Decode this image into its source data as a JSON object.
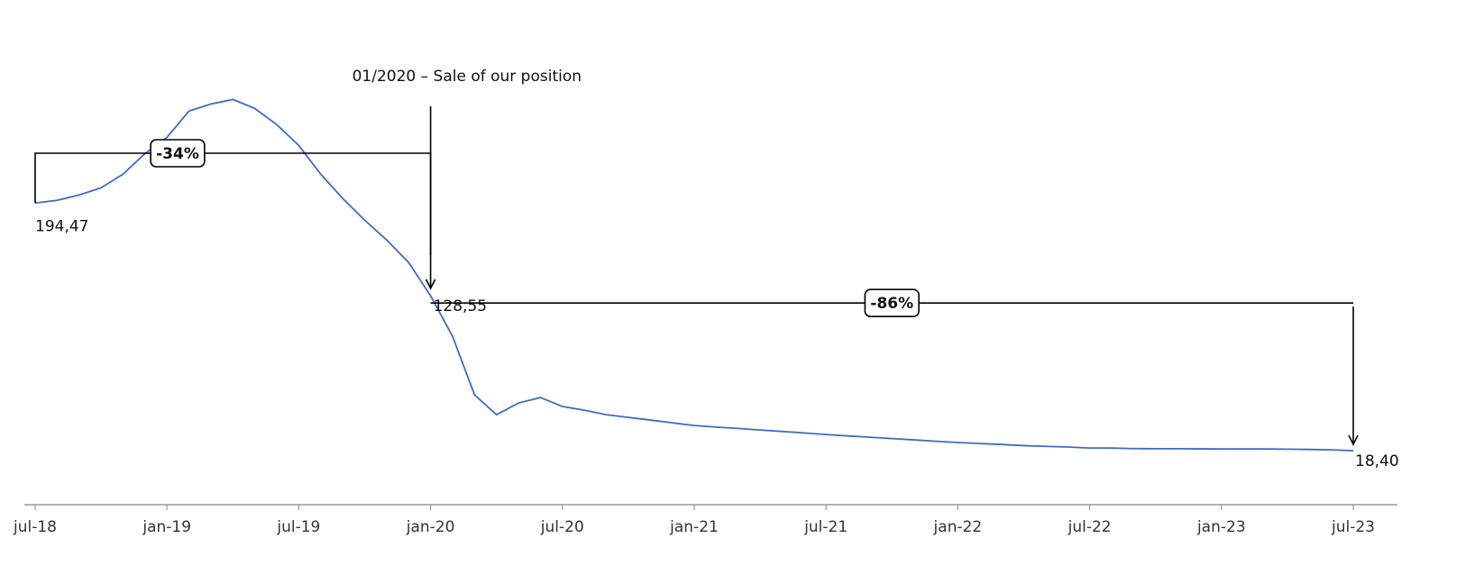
{
  "chart_data": {
    "type": "line",
    "color": "#3d6cc4",
    "x": [
      "2018-07",
      "2018-08",
      "2018-09",
      "2018-10",
      "2018-11",
      "2018-12",
      "2019-01",
      "2019-02",
      "2019-03",
      "2019-04",
      "2019-05",
      "2019-06",
      "2019-07",
      "2019-08",
      "2019-09",
      "2019-10",
      "2019-11",
      "2019-12",
      "2020-01",
      "2020-02",
      "2020-03",
      "2020-04",
      "2020-05",
      "2020-06",
      "2020-07",
      "2020-08",
      "2020-09",
      "2020-10",
      "2020-11",
      "2020-12",
      "2021-01",
      "2021-02",
      "2021-03",
      "2021-04",
      "2021-05",
      "2021-06",
      "2021-07",
      "2021-08",
      "2021-09",
      "2021-10",
      "2021-11",
      "2021-12",
      "2022-01",
      "2022-02",
      "2022-03",
      "2022-04",
      "2022-05",
      "2022-06",
      "2022-07",
      "2022-08",
      "2022-09",
      "2022-10",
      "2022-11",
      "2022-12",
      "2023-01",
      "2023-02",
      "2023-03",
      "2023-04",
      "2023-05",
      "2023-06",
      "2023-07"
    ],
    "values": [
      194.47,
      196.4,
      200.2,
      205.3,
      215.0,
      229.7,
      241.2,
      259.8,
      264.9,
      268.1,
      261.7,
      250.2,
      235.4,
      215.0,
      197.7,
      182.3,
      168.2,
      152.2,
      128.55,
      99.7,
      58.1,
      44.0,
      52.3,
      56.2,
      49.8,
      47.2,
      44.0,
      42.1,
      40.2,
      38.2,
      36.3,
      35.2,
      34.2,
      33.1,
      32.1,
      31.0,
      29.9,
      28.9,
      28.0,
      27.0,
      26.1,
      25.1,
      24.2,
      23.5,
      22.8,
      22.0,
      21.5,
      21.0,
      20.3,
      20.3,
      19.9,
      19.8,
      19.8,
      19.7,
      19.6,
      19.6,
      19.6,
      19.5,
      19.3,
      19.0,
      18.4
    ],
    "value_labels": [
      "194,47",
      null,
      null,
      null,
      null,
      null,
      null,
      null,
      null,
      null,
      null,
      null,
      null,
      null,
      null,
      null,
      null,
      null,
      "128,55",
      null,
      null,
      null,
      null,
      null,
      null,
      null,
      null,
      null,
      null,
      null,
      null,
      null,
      null,
      null,
      null,
      null,
      null,
      null,
      null,
      null,
      null,
      null,
      null,
      null,
      null,
      null,
      null,
      null,
      null,
      null,
      null,
      null,
      null,
      null,
      null,
      null,
      null,
      null,
      null,
      null,
      "18,40"
    ],
    "ylim": [
      -20,
      326
    ],
    "xticks": [
      {
        "value": "2018-07",
        "label": "jul-18"
      },
      {
        "value": "2019-01",
        "label": "jan-19"
      },
      {
        "value": "2019-07",
        "label": "jul-19"
      },
      {
        "value": "2020-01",
        "label": "jan-20"
      },
      {
        "value": "2020-07",
        "label": "jul-20"
      },
      {
        "value": "2021-01",
        "label": "jan-21"
      },
      {
        "value": "2021-07",
        "label": "jul-21"
      },
      {
        "value": "2022-01",
        "label": "jan-22"
      },
      {
        "value": "2022-07",
        "label": "jul-22"
      },
      {
        "value": "2023-01",
        "label": "jan-23"
      },
      {
        "value": "2023-07",
        "label": "jul-23"
      }
    ],
    "event": {
      "x": "2020-01",
      "text": "01/2020 – Sale of our position"
    },
    "changes": [
      {
        "from": "2018-07",
        "to": "2020-01",
        "value": -34,
        "label": "-34%"
      },
      {
        "from": "2020-01",
        "to": "2023-07",
        "value": -86,
        "label": "-86%"
      }
    ]
  }
}
